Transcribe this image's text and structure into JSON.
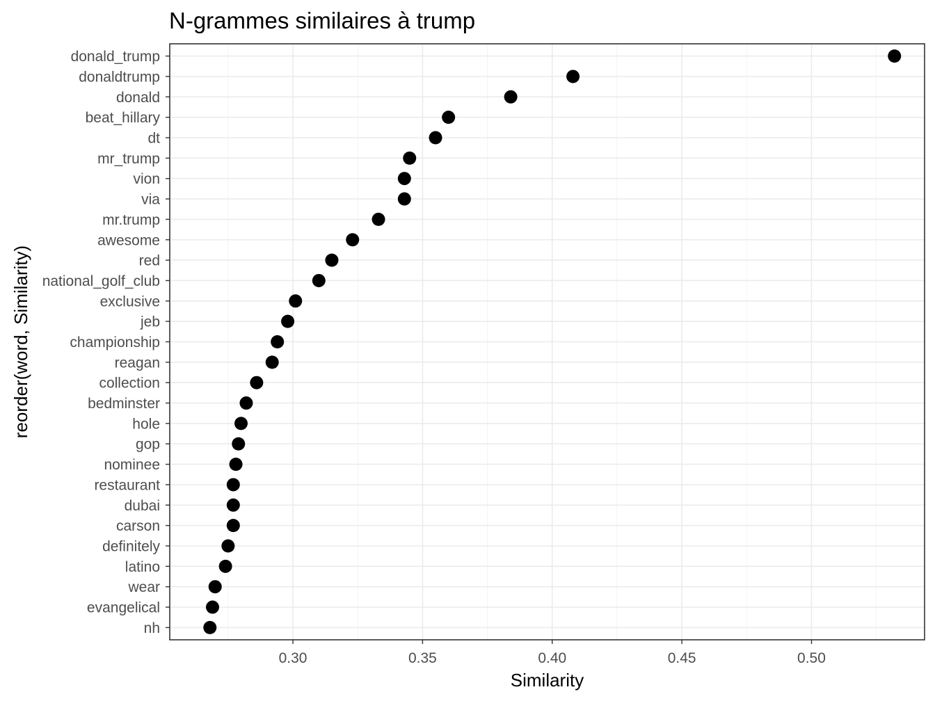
{
  "chart_data": {
    "type": "scatter",
    "title": "N-grammes similaires à trump",
    "xlabel": "Similarity",
    "ylabel": "reorder(word, Similarity)",
    "xlim": [
      0.2525,
      0.5436
    ],
    "xticks": [
      0.3,
      0.35,
      0.4,
      0.45,
      0.5
    ],
    "xtick_labels": [
      "0.30",
      "0.35",
      "0.40",
      "0.45",
      "0.50"
    ],
    "grid": true,
    "legend": "none",
    "point_color": "#000000",
    "points": [
      {
        "word": "donald_trump",
        "similarity": 0.532
      },
      {
        "word": "donaldtrump",
        "similarity": 0.408
      },
      {
        "word": "donald",
        "similarity": 0.384
      },
      {
        "word": "beat_hillary",
        "similarity": 0.36
      },
      {
        "word": "dt",
        "similarity": 0.355
      },
      {
        "word": "mr_trump",
        "similarity": 0.345
      },
      {
        "word": "vion",
        "similarity": 0.343
      },
      {
        "word": "via",
        "similarity": 0.343
      },
      {
        "word": "mr.trump",
        "similarity": 0.333
      },
      {
        "word": "awesome",
        "similarity": 0.323
      },
      {
        "word": "red",
        "similarity": 0.315
      },
      {
        "word": "national_golf_club",
        "similarity": 0.31
      },
      {
        "word": "exclusive",
        "similarity": 0.301
      },
      {
        "word": "jeb",
        "similarity": 0.298
      },
      {
        "word": "championship",
        "similarity": 0.294
      },
      {
        "word": "reagan",
        "similarity": 0.292
      },
      {
        "word": "collection",
        "similarity": 0.286
      },
      {
        "word": "bedminster",
        "similarity": 0.282
      },
      {
        "word": "hole",
        "similarity": 0.28
      },
      {
        "word": "gop",
        "similarity": 0.279
      },
      {
        "word": "nominee",
        "similarity": 0.278
      },
      {
        "word": "restaurant",
        "similarity": 0.277
      },
      {
        "word": "dubai",
        "similarity": 0.277
      },
      {
        "word": "carson",
        "similarity": 0.277
      },
      {
        "word": "definitely",
        "similarity": 0.275
      },
      {
        "word": "latino",
        "similarity": 0.274
      },
      {
        "word": "wear",
        "similarity": 0.27
      },
      {
        "word": "evangelical",
        "similarity": 0.269
      },
      {
        "word": "nh",
        "similarity": 0.268
      }
    ]
  }
}
